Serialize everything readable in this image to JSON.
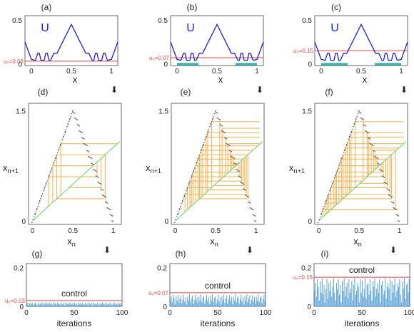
{
  "panels": [
    {
      "label": "(a)",
      "u0_label": "u₀=0.03"
    },
    {
      "label": "(b)",
      "u0_label": "u₀=0.07"
    },
    {
      "label": "(c)",
      "u0_label": "u₀=0.15"
    },
    {
      "label": "(d)"
    },
    {
      "label": "(e)"
    },
    {
      "label": "(f)"
    },
    {
      "label": "(g)",
      "u0_label": "u₀=0.03",
      "annotation": "control"
    },
    {
      "label": "(h)",
      "u0_label": "u₀=0.07",
      "annotation": "control"
    },
    {
      "label": "(i)",
      "u0_label": "u₀=0.15",
      "annotation": "control"
    }
  ],
  "colors": {
    "potential": "#1f1fcf",
    "threshold": "#e04848",
    "diagonal": "#66d466",
    "cobweb": "#f2a93b",
    "map_points": "#555555",
    "bars": "#5ba3d9",
    "segments": "#2ab3a8"
  },
  "chart_data": [
    {
      "type": "line",
      "panel": "(a)",
      "series": [
        {
          "name": "U",
          "x": [
            -0.08,
            0,
            0.05,
            0.08,
            0.1,
            0.12,
            0.16,
            0.18,
            0.2,
            0.22,
            0.24,
            0.28,
            0.32,
            0.5,
            0.68,
            0.72,
            0.76,
            0.78,
            0.8,
            0.82,
            0.84,
            0.88,
            0.9,
            0.92,
            0.95,
            1,
            1.08
          ],
          "y": [
            0.25,
            0.05,
            0.04,
            0.12,
            0.12,
            0.04,
            0.04,
            0.12,
            0.12,
            0.04,
            0.04,
            0.12,
            0.12,
            0.45,
            0.12,
            0.12,
            0.04,
            0.04,
            0.12,
            0.12,
            0.04,
            0.04,
            0.12,
            0.12,
            0.04,
            0.05,
            0.25
          ]
        }
      ],
      "threshold": 0.03,
      "xlabel": "x",
      "xticks": [
        0,
        0.5,
        1
      ],
      "yticks": [
        0,
        0.5
      ],
      "xlim": [
        -0.08,
        1.08
      ],
      "ylim": [
        -0.02,
        0.55
      ]
    },
    {
      "type": "line",
      "panel": "(b)",
      "series": [
        {
          "name": "U",
          "x": [
            -0.08,
            0,
            0.05,
            0.08,
            0.1,
            0.12,
            0.16,
            0.18,
            0.2,
            0.22,
            0.24,
            0.28,
            0.32,
            0.5,
            0.68,
            0.72,
            0.76,
            0.78,
            0.8,
            0.82,
            0.84,
            0.88,
            0.9,
            0.92,
            0.95,
            1,
            1.08
          ],
          "y": [
            0.25,
            0.05,
            0.04,
            0.12,
            0.12,
            0.04,
            0.04,
            0.12,
            0.12,
            0.04,
            0.04,
            0.12,
            0.12,
            0.45,
            0.12,
            0.12,
            0.04,
            0.04,
            0.12,
            0.12,
            0.04,
            0.04,
            0.12,
            0.12,
            0.04,
            0.05,
            0.25
          ]
        }
      ],
      "threshold": 0.07,
      "xlabel": "x",
      "xticks": [
        0,
        0.5,
        1
      ],
      "yticks": [
        0,
        0.5
      ],
      "xlim": [
        -0.08,
        1.08
      ],
      "ylim": [
        -0.02,
        0.55
      ]
    },
    {
      "type": "line",
      "panel": "(c)",
      "series": [
        {
          "name": "U",
          "x": [
            -0.08,
            0,
            0.05,
            0.08,
            0.1,
            0.12,
            0.16,
            0.18,
            0.2,
            0.22,
            0.24,
            0.28,
            0.32,
            0.5,
            0.68,
            0.72,
            0.76,
            0.78,
            0.8,
            0.82,
            0.84,
            0.88,
            0.9,
            0.92,
            0.95,
            1,
            1.08
          ],
          "y": [
            0.25,
            0.05,
            0.04,
            0.12,
            0.12,
            0.04,
            0.04,
            0.12,
            0.12,
            0.04,
            0.04,
            0.12,
            0.12,
            0.45,
            0.12,
            0.12,
            0.04,
            0.04,
            0.12,
            0.12,
            0.04,
            0.04,
            0.12,
            0.12,
            0.04,
            0.05,
            0.25
          ]
        }
      ],
      "threshold": 0.15,
      "xlabel": "x",
      "xticks": [
        0,
        0.5,
        1
      ],
      "yticks": [
        0,
        0.5
      ],
      "xlim": [
        -0.08,
        1.08
      ],
      "ylim": [
        -0.02,
        0.55
      ]
    },
    {
      "type": "scatter",
      "panel": "(d)",
      "xlabel": "xₙ",
      "ylabel": "xₙ₊₁",
      "xticks": [
        0,
        0.5,
        1
      ],
      "yticks": [
        0,
        1.5
      ],
      "xlim": [
        -0.05,
        1.1
      ],
      "ylim": [
        -0.05,
        1.6
      ],
      "cobweb_x": [
        0.3,
        0.3,
        0.3,
        0.85,
        0.85,
        0.2,
        0.2,
        0.75,
        0.75,
        0.35,
        0.35,
        0.9,
        0.9,
        0.25,
        0.25,
        0.8,
        0.8
      ]
    },
    {
      "type": "scatter",
      "panel": "(e)",
      "xlabel": "xₙ",
      "ylabel": "xₙ₊₁",
      "xticks": [
        0,
        0.5,
        1
      ],
      "yticks": [
        0,
        1.5
      ],
      "xlim": [
        -0.05,
        1.1
      ],
      "ylim": [
        -0.05,
        1.6
      ],
      "cobweb_x": [
        0.15,
        0.22,
        0.28,
        0.34,
        0.4,
        0.45,
        0.55,
        0.62,
        0.68,
        0.74,
        0.8,
        0.86,
        0.9,
        0.18,
        0.25,
        0.32,
        0.38,
        0.58,
        0.65,
        0.72,
        0.78,
        0.84,
        0.12,
        0.2,
        0.3,
        0.7,
        0.82,
        0.88
      ]
    },
    {
      "type": "scatter",
      "panel": "(f)",
      "xlabel": "xₙ",
      "ylabel": "xₙ₊₁",
      "xticks": [
        0,
        0.5,
        1
      ],
      "yticks": [
        0,
        1.5
      ],
      "xlim": [
        -0.05,
        1.1
      ],
      "ylim": [
        -0.05,
        1.6
      ],
      "cobweb_x": [
        0.05,
        0.1,
        0.15,
        0.2,
        0.25,
        0.3,
        0.35,
        0.4,
        0.45,
        0.55,
        0.6,
        0.65,
        0.7,
        0.75,
        0.8,
        0.85,
        0.9,
        0.95,
        0.08,
        0.12,
        0.18,
        0.22,
        0.28,
        0.33,
        0.38,
        0.62,
        0.68,
        0.72,
        0.78,
        0.83,
        0.88
      ]
    },
    {
      "type": "bar",
      "panel": "(g)",
      "threshold": 0.03,
      "xlabel": "iterations",
      "xticks": [
        0,
        50,
        100
      ],
      "yticks": [
        0,
        0.2
      ],
      "xlim": [
        0,
        100
      ],
      "ylim": [
        0,
        0.22
      ],
      "values": [
        0.01,
        0.02,
        0.005,
        0.015,
        0.02,
        0.01,
        0.018,
        0.007,
        0.012,
        0.02,
        0.015,
        0.005,
        0.02,
        0.01,
        0.017,
        0.009,
        0.02,
        0.013,
        0.006,
        0.019,
        0.011,
        0.02,
        0.008,
        0.014,
        0.02,
        0.01,
        0.016,
        0.005,
        0.02,
        0.012,
        0.018,
        0.009,
        0.02,
        0.011,
        0.015,
        0.007,
        0.02,
        0.013,
        0.01,
        0.019,
        0.006,
        0.02,
        0.012,
        0.016,
        0.009,
        0.02,
        0.014,
        0.008,
        0.018,
        0.011,
        0.02,
        0.01,
        0.015,
        0.006,
        0.02,
        0.013,
        0.017,
        0.009,
        0.02,
        0.012,
        0.008,
        0.019,
        0.011,
        0.016,
        0.007,
        0.02,
        0.013,
        0.01,
        0.018,
        0.006,
        0.02,
        0.012,
        0.015,
        0.009,
        0.02,
        0.014,
        0.008,
        0.017,
        0.011,
        0.02,
        0.01,
        0.016,
        0.007,
        0.019,
        0.012,
        0.014,
        0.009,
        0.02,
        0.013,
        0.006,
        0.018,
        0.011,
        0.02,
        0.01,
        0.015,
        0.008,
        0.02,
        0.012,
        0.017,
        0.009
      ]
    },
    {
      "type": "bar",
      "panel": "(h)",
      "threshold": 0.07,
      "xlabel": "iterations",
      "xticks": [
        0,
        50,
        100
      ],
      "yticks": [
        0,
        0.2
      ],
      "xlim": [
        0,
        100
      ],
      "ylim": [
        0,
        0.22
      ],
      "values": [
        0.03,
        0.05,
        0.02,
        0.06,
        0.04,
        0.01,
        0.05,
        0.03,
        0.06,
        0.02,
        0.04,
        0.055,
        0.015,
        0.035,
        0.06,
        0.025,
        0.045,
        0.01,
        0.05,
        0.03,
        0.065,
        0.02,
        0.04,
        0.055,
        0.012,
        0.035,
        0.06,
        0.028,
        0.045,
        0.018,
        0.05,
        0.032,
        0.062,
        0.022,
        0.042,
        0.052,
        0.014,
        0.038,
        0.058,
        0.026,
        0.048,
        0.012,
        0.054,
        0.03,
        0.064,
        0.02,
        0.044,
        0.05,
        0.016,
        0.036,
        0.06,
        0.024,
        0.046,
        0.01,
        0.052,
        0.034,
        0.062,
        0.018,
        0.04,
        0.056,
        0.014,
        0.038,
        0.058,
        0.028,
        0.048,
        0.012,
        0.05,
        0.032,
        0.064,
        0.022,
        0.044,
        0.054,
        0.016,
        0.036,
        0.06,
        0.026,
        0.046,
        0.01,
        0.052,
        0.03,
        0.062,
        0.02,
        0.042,
        0.056,
        0.012,
        0.034,
        0.058,
        0.024,
        0.048,
        0.014,
        0.05,
        0.03,
        0.064,
        0.022,
        0.044,
        0.052,
        0.016,
        0.038,
        0.06,
        0.028
      ]
    },
    {
      "type": "bar",
      "panel": "(i)",
      "threshold": 0.15,
      "xlabel": "iterations",
      "xticks": [
        0,
        50,
        100
      ],
      "yticks": [
        0,
        0.2
      ],
      "xlim": [
        0,
        100
      ],
      "ylim": [
        0,
        0.22
      ],
      "values": [
        0.08,
        0.12,
        0.05,
        0.14,
        0.1,
        0.03,
        0.13,
        0.07,
        0.145,
        0.06,
        0.11,
        0.02,
        0.09,
        0.14,
        0.04,
        0.12,
        0.08,
        0.13,
        0.05,
        0.1,
        0.145,
        0.07,
        0.03,
        0.12,
        0.09,
        0.14,
        0.06,
        0.11,
        0.02,
        0.13,
        0.08,
        0.145,
        0.05,
        0.1,
        0.12,
        0.04,
        0.14,
        0.07,
        0.09,
        0.13,
        0.03,
        0.11,
        0.145,
        0.06,
        0.08,
        0.12,
        0.1,
        0.02,
        0.14,
        0.07,
        0.13,
        0.05,
        0.09,
        0.145,
        0.04,
        0.11,
        0.12,
        0.06,
        0.14,
        0.08,
        0.03,
        0.13,
        0.1,
        0.145,
        0.05,
        0.09,
        0.12,
        0.07,
        0.14,
        0.02,
        0.11,
        0.13,
        0.06,
        0.08,
        0.145,
        0.04,
        0.1,
        0.12,
        0.09,
        0.14,
        0.03,
        0.13,
        0.07,
        0.11,
        0.145,
        0.05,
        0.08,
        0.12,
        0.1,
        0.14,
        0.06,
        0.02,
        0.13,
        0.09,
        0.145,
        0.04,
        0.11,
        0.12,
        0.07,
        0.14
      ]
    }
  ]
}
